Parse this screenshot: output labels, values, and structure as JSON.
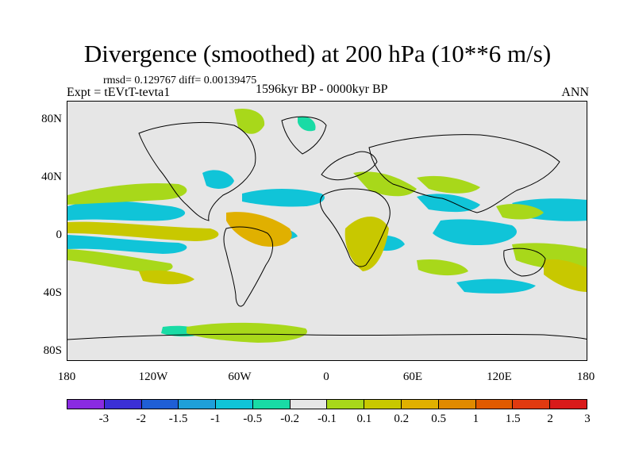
{
  "header": {
    "title": "Divergence (smoothed) at 200 hPa (10**6 m/s)",
    "stats": "rmsd= 0.129767 diff= 0.00139475",
    "experiment": "Expt = tEVtT-tevta1",
    "period": "1596kyr BP - 0000kyr BP",
    "season": "ANN"
  },
  "axes": {
    "lat_labels": [
      "80N",
      "40N",
      "0",
      "40S",
      "80S"
    ],
    "lon_labels": [
      "180",
      "120W",
      "60W",
      "0",
      "60E",
      "120E",
      "180"
    ]
  },
  "colorbar": {
    "colors": [
      "#8a2be2",
      "#3b2fd6",
      "#1f5fd6",
      "#1e9fd9",
      "#10c4d8",
      "#19dba5",
      "#e6e6e6",
      "#a8d81a",
      "#c8c800",
      "#e0b000",
      "#e08a00",
      "#e05a00",
      "#e03a10",
      "#d91a1a"
    ],
    "labels": [
      "-3",
      "-2",
      "-1.5",
      "-1",
      "-0.5",
      "-0.2",
      "-0.1",
      "0.1",
      "0.2",
      "0.5",
      "1",
      "1.5",
      "2",
      "3"
    ]
  }
}
